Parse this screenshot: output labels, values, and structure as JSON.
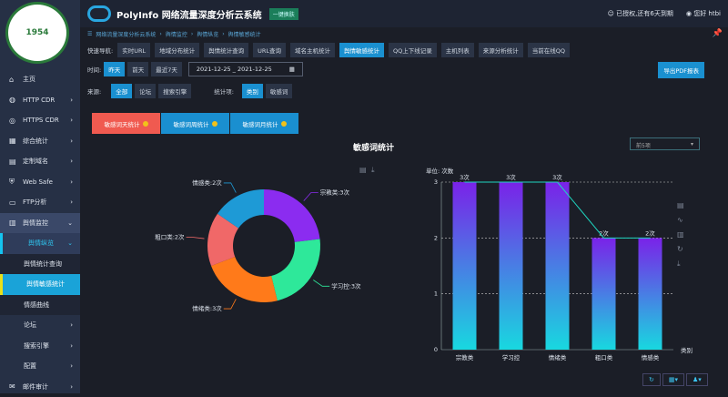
{
  "sidebar": {
    "logo_text": "1954",
    "items": [
      {
        "icon": "home-icon",
        "label": "主页"
      },
      {
        "icon": "globe-icon",
        "label": "HTTP CDR"
      },
      {
        "icon": "globe-lock-icon",
        "label": "HTTPS CDR"
      },
      {
        "icon": "grid-icon",
        "label": "综合统计"
      },
      {
        "icon": "document-icon",
        "label": "定制域名"
      },
      {
        "icon": "shield-icon",
        "label": "Web Safe"
      },
      {
        "icon": "monitor-icon",
        "label": "FTP分析"
      },
      {
        "icon": "bar-chart-icon",
        "label": "舆情监控"
      },
      {
        "label": "舆情纵览"
      },
      {
        "label": "舆情统计查询"
      },
      {
        "label": "舆情敏感统计"
      },
      {
        "label": "情感曲线"
      },
      {
        "label": "论坛"
      },
      {
        "label": "搜索引擎"
      },
      {
        "label": "配置"
      },
      {
        "icon": "mail-icon",
        "label": "邮件审计"
      }
    ]
  },
  "header": {
    "title": "PolyInfo 网络流量深度分析云系统",
    "badge": "一键换肤",
    "license": "已授权,还有6天到期",
    "user": "您好 htbi"
  },
  "breadcrumb": [
    "网络流量深度分析云系统",
    "舆情监控",
    "舆情纵览",
    "舆情敏感统计"
  ],
  "quicknav": {
    "label": "快速导航:",
    "items": [
      "实时URL",
      "地域分布统计",
      "舆情统计查询",
      "URL查询",
      "域名主机统计",
      "舆情敏感统计",
      "QQ上下线记录",
      "主机列表",
      "来源分析统计",
      "当前在线QQ"
    ],
    "active": 5
  },
  "time": {
    "label": "时间:",
    "options": [
      "昨天",
      "前天",
      "最近7天"
    ],
    "range": "2021-12-25 _ 2021-12-25"
  },
  "export_label": "导出PDF报表",
  "source": {
    "label": "来源:",
    "options": [
      "全部",
      "论坛",
      "搜索引擎"
    ]
  },
  "stat_dim": {
    "label": "统计项:",
    "options": [
      "类别",
      "敏感词"
    ]
  },
  "tabs": [
    "敏感词天统计",
    "敏感词周统计",
    "敏感词月统计"
  ],
  "chart_title": "敏感词统计",
  "select_value": "前5项",
  "chart_data": [
    {
      "type": "pie",
      "donut": true,
      "labels": [
        "宗教类:3次",
        "学习控:3次",
        "情绪类:3次",
        "粗口类:2次",
        "情感类:2次"
      ],
      "values": [
        3,
        3,
        3,
        2,
        2
      ],
      "colors": [
        "#8b2cf0",
        "#2ee89a",
        "#ff7a1a",
        "#f06868",
        "#1e9ad6"
      ]
    },
    {
      "type": "bar",
      "unit": "单位: 次数",
      "categories": [
        "宗教类",
        "学习控",
        "情绪类",
        "粗口类",
        "情感类"
      ],
      "values": [
        3,
        3,
        3,
        2,
        2
      ],
      "data_labels": [
        "3次",
        "3次",
        "3次",
        "2次",
        "2次"
      ],
      "xlabel": "类别",
      "ylim": [
        0,
        3
      ],
      "yticks": [
        "0",
        "1",
        "2",
        "3"
      ],
      "line_overlay": true,
      "colors": {
        "top": "#7a22e8",
        "bottom": "#18d8e0",
        "line": "#1fd6c0"
      }
    }
  ]
}
